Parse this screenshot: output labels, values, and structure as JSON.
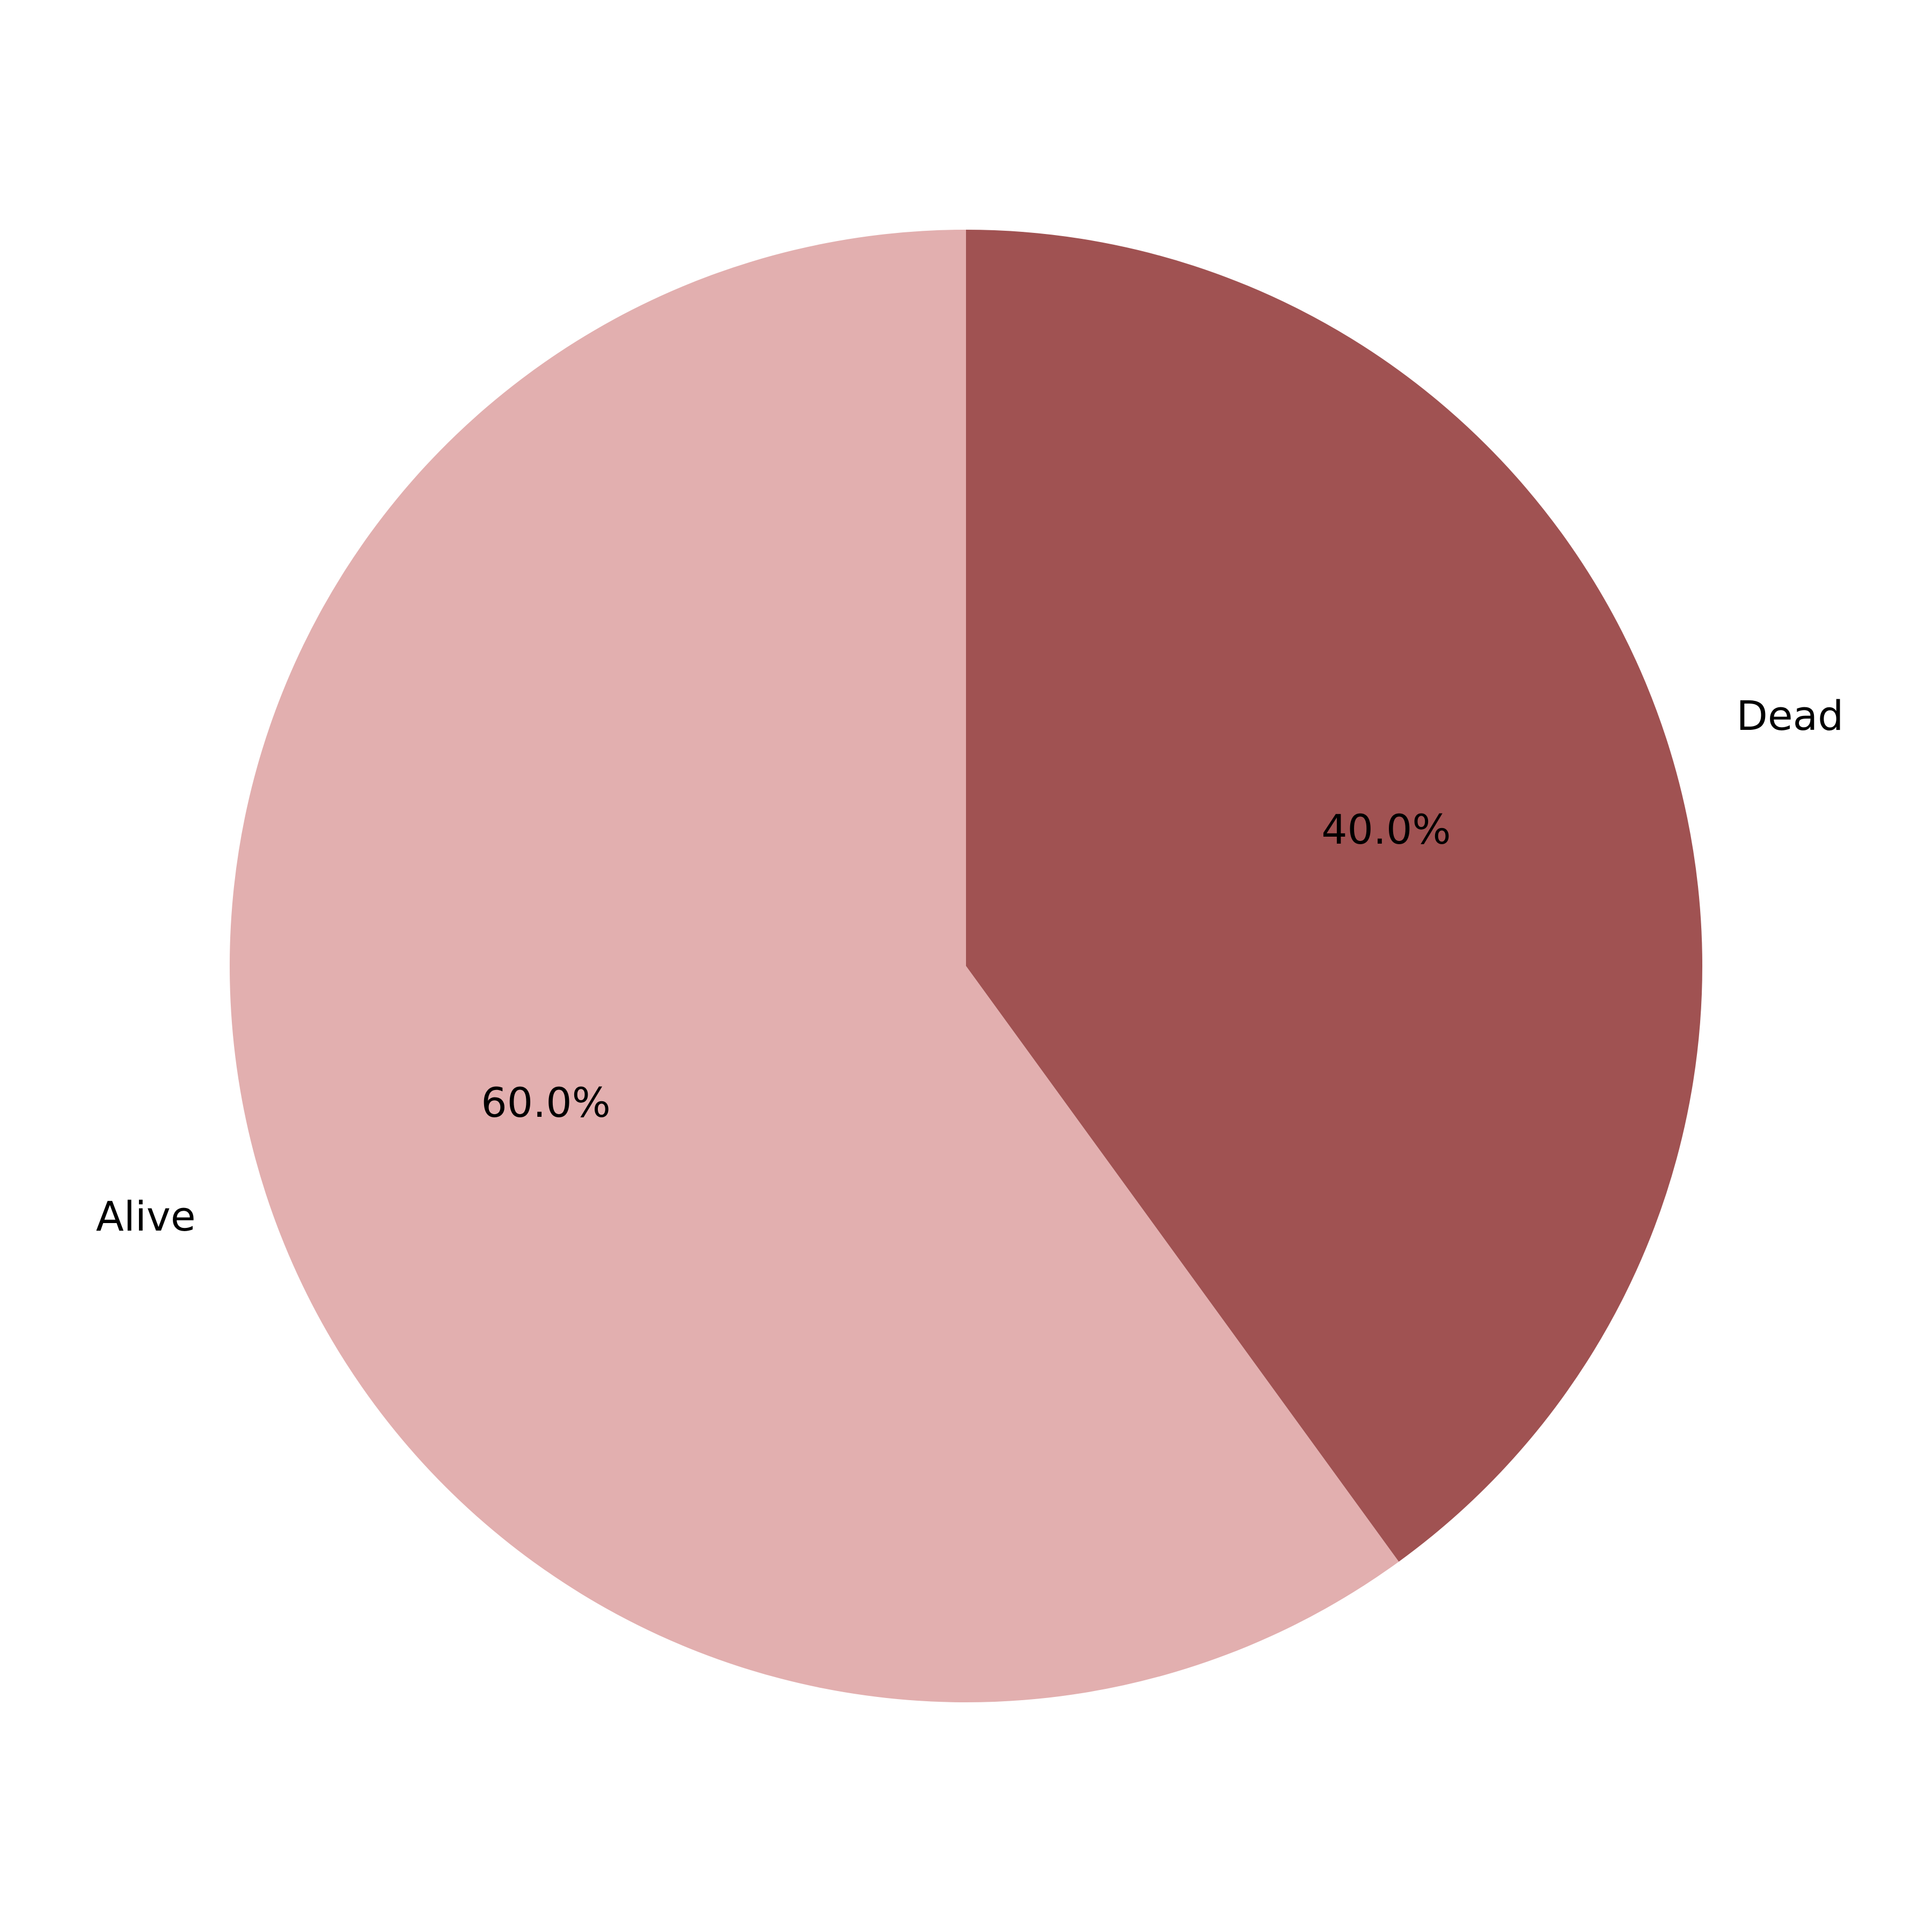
{
  "chart_data": {
    "type": "pie",
    "title": "",
    "slices": [
      {
        "label": "Dead",
        "value": 40.0,
        "pct_text": "40.0%",
        "color": "#a05252"
      },
      {
        "label": "Alive",
        "value": 60.0,
        "pct_text": "60.0%",
        "color": "#e2afaf"
      }
    ],
    "start_angle_deg": 90,
    "direction": "clockwise",
    "legend": "none"
  }
}
